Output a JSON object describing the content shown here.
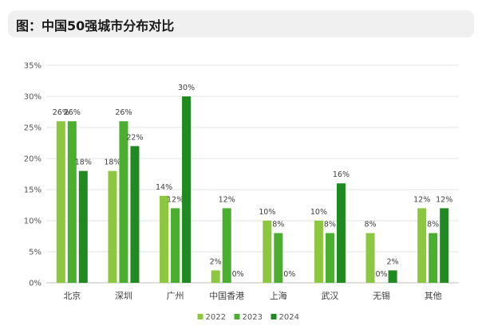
{
  "header": {
    "title": "图：中国50强城市分布对比"
  },
  "chart_data": {
    "type": "bar",
    "categories": [
      "北京",
      "深圳",
      "广州",
      "中国香港",
      "上海",
      "武汉",
      "无锡",
      "其他"
    ],
    "series": [
      {
        "name": "2022",
        "color": "#8dc63f",
        "values": [
          26,
          18,
          14,
          2,
          10,
          10,
          8,
          12
        ]
      },
      {
        "name": "2023",
        "color": "#4aae2e",
        "values": [
          26,
          26,
          12,
          12,
          8,
          8,
          0,
          8
        ]
      },
      {
        "name": "2024",
        "color": "#1f8a1f",
        "values": [
          18,
          22,
          30,
          0,
          0,
          16,
          2,
          12
        ]
      }
    ],
    "ylim": [
      0,
      35
    ],
    "yticks": [
      "0%",
      "5%",
      "10%",
      "15%",
      "20%",
      "25%",
      "30%",
      "35%"
    ],
    "value_suffix": "%",
    "grid": true,
    "legend_position": "bottom-center"
  }
}
